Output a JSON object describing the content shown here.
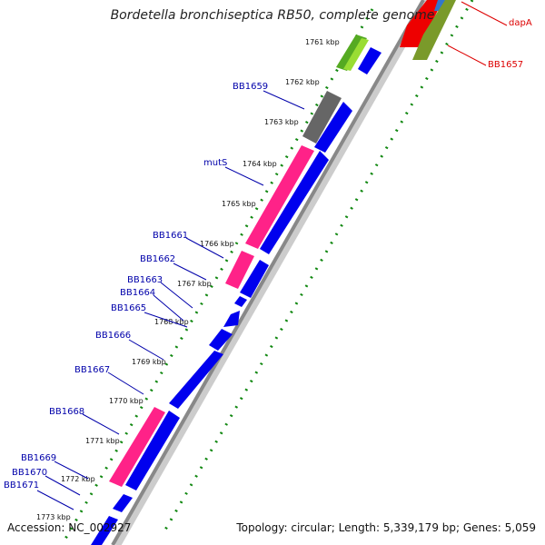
{
  "title": "Bordetella bronchiseptica RB50, complete genome",
  "footer": {
    "accession": "Accession: NC_002927",
    "summary": "Topology: circular; Length: 5,339,179 bp; Genes: 5,059"
  },
  "kbp_ticks": [
    "1761 kbp",
    "1762 kbp",
    "1763 kbp",
    "1764 kbp",
    "1765 kbp",
    "1766 kbp",
    "1767 kbp",
    "1768 kbp",
    "1769 kbp",
    "1770 kbp",
    "1771 kbp",
    "1772 kbp",
    "1773 kbp"
  ],
  "left_genes": [
    "BB1659",
    "mutS",
    "BB1661",
    "BB1662",
    "BB1663",
    "BB1664",
    "BB1665",
    "BB1666",
    "BB1667",
    "BB1668",
    "BB1669",
    "BB1670",
    "BB1671"
  ],
  "right_genes": [
    "dapA",
    "BB1657"
  ],
  "colors": {
    "forward_gene": "#0000ee",
    "highlight_gene": "#ff2288",
    "grey_gene": "#666666",
    "green_gene": "#66aa22",
    "olive_gene": "#7a9a2a",
    "red_gene": "#ee0000",
    "label_blue": "#0000aa",
    "label_red": "#dd0000",
    "tick_green": "#118811"
  }
}
